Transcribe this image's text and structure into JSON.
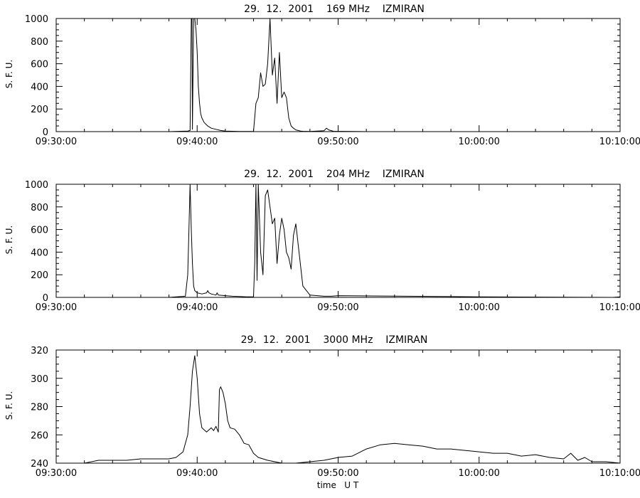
{
  "chart_data": [
    {
      "type": "line",
      "title": "29.  12.  2001    169 MHz    IZMIRAN",
      "ylabel": "S. F. U.",
      "xlabel": "",
      "xlim": [
        "09:30:00",
        "10:10:00"
      ],
      "ylim": [
        0,
        1000
      ],
      "x_ticks": [
        "09:30:00",
        "09:40:00",
        "09:50:00",
        "10:00:00",
        "10:10:00"
      ],
      "y_ticks": [
        0,
        200,
        400,
        600,
        800,
        1000
      ],
      "grid": false,
      "series": [
        {
          "x": [
            "09:30:00",
            "09:38:00",
            "09:39:20",
            "09:39:30",
            "09:39:35",
            "09:39:38",
            "09:39:40",
            "09:39:45",
            "09:39:50",
            "09:39:55",
            "09:40:00",
            "09:40:05",
            "09:40:10",
            "09:40:15",
            "09:40:20",
            "09:40:30",
            "09:40:45",
            "09:41:00",
            "09:41:20",
            "09:41:40",
            "09:42:00",
            "09:42:30",
            "09:43:00",
            "09:43:30",
            "09:44:00",
            "09:44:10",
            "09:44:20",
            "09:44:30",
            "09:44:40",
            "09:44:50",
            "09:45:00",
            "09:45:10",
            "09:45:20",
            "09:45:30",
            "09:45:40",
            "09:45:50",
            "09:46:00",
            "09:46:10",
            "09:46:20",
            "09:46:30",
            "09:46:40",
            "09:46:50",
            "09:47:00",
            "09:47:10",
            "09:47:20",
            "09:47:30",
            "09:48:00",
            "09:49:00",
            "09:49:10",
            "09:49:20",
            "09:49:40",
            "09:52:00",
            "10:00:00",
            "10:10:00"
          ],
          "y": [
            0,
            0,
            5,
            10,
            1000,
            1000,
            20,
            1000,
            1000,
            900,
            700,
            400,
            250,
            160,
            120,
            80,
            50,
            30,
            20,
            10,
            5,
            3,
            2,
            1,
            2,
            250,
            300,
            520,
            400,
            420,
            600,
            1000,
            500,
            650,
            250,
            700,
            300,
            350,
            300,
            120,
            50,
            30,
            15,
            10,
            5,
            3,
            2,
            8,
            30,
            15,
            3,
            0,
            0,
            0
          ]
        }
      ]
    },
    {
      "type": "line",
      "title": "29.  12.  2001    204 MHz    IZMIRAN",
      "ylabel": "S. F. U.",
      "xlabel": "",
      "xlim": [
        "09:30:00",
        "10:10:00"
      ],
      "ylim": [
        0,
        1000
      ],
      "x_ticks": [
        "09:30:00",
        "09:40:00",
        "09:50:00",
        "10:00:00",
        "10:10:00"
      ],
      "y_ticks": [
        0,
        200,
        400,
        600,
        800,
        1000
      ],
      "grid": false,
      "series": [
        {
          "x": [
            "09:30:00",
            "09:38:00",
            "09:39:10",
            "09:39:20",
            "09:39:25",
            "09:39:30",
            "09:39:35",
            "09:39:40",
            "09:39:45",
            "09:39:50",
            "09:40:00",
            "09:40:20",
            "09:40:40",
            "09:40:45",
            "09:40:50",
            "09:41:00",
            "09:41:20",
            "09:41:25",
            "09:41:30",
            "09:42:00",
            "09:42:30",
            "09:43:00",
            "09:43:30",
            "09:44:00",
            "09:44:05",
            "09:44:10",
            "09:44:15",
            "09:44:20",
            "09:44:30",
            "09:44:40",
            "09:44:50",
            "09:45:00",
            "09:45:10",
            "09:45:20",
            "09:45:30",
            "09:45:40",
            "09:45:50",
            "09:46:00",
            "09:46:10",
            "09:46:20",
            "09:46:30",
            "09:46:40",
            "09:46:50",
            "09:47:00",
            "09:47:30",
            "09:48:00",
            "09:49:00",
            "09:49:30",
            "09:50:00",
            "10:00:00",
            "10:09:30",
            "10:10:00"
          ],
          "y": [
            0,
            0,
            10,
            200,
            600,
            1000,
            600,
            300,
            100,
            60,
            40,
            30,
            40,
            60,
            40,
            30,
            20,
            40,
            20,
            15,
            10,
            8,
            5,
            5,
            300,
            1000,
            150,
            1000,
            400,
            200,
            900,
            950,
            800,
            650,
            700,
            300,
            550,
            700,
            600,
            400,
            350,
            250,
            550,
            650,
            100,
            20,
            10,
            10,
            15,
            5,
            0,
            5
          ]
        }
      ]
    },
    {
      "type": "line",
      "title": "29.  12.  2001    3000 MHz    IZMIRAN",
      "ylabel": "S. F. U.",
      "xlabel": "time   U T",
      "xlim": [
        "09:30:00",
        "10:10:00"
      ],
      "ylim": [
        240,
        320
      ],
      "x_ticks": [
        "09:30:00",
        "09:40:00",
        "09:50:00",
        "10:00:00",
        "10:10:00"
      ],
      "y_ticks": [
        240,
        260,
        280,
        300,
        320
      ],
      "grid": false,
      "series": [
        {
          "x": [
            "09:30:00",
            "09:31:00",
            "09:32:00",
            "09:33:00",
            "09:34:00",
            "09:35:00",
            "09:36:00",
            "09:37:00",
            "09:38:00",
            "09:38:30",
            "09:39:00",
            "09:39:20",
            "09:39:30",
            "09:39:40",
            "09:39:50",
            "09:40:00",
            "09:40:10",
            "09:40:20",
            "09:40:40",
            "09:41:00",
            "09:41:10",
            "09:41:20",
            "09:41:30",
            "09:41:35",
            "09:41:40",
            "09:41:50",
            "09:42:00",
            "09:42:10",
            "09:42:20",
            "09:42:40",
            "09:43:00",
            "09:43:20",
            "09:43:40",
            "09:44:00",
            "09:44:20",
            "09:44:40",
            "09:45:00",
            "09:46:00",
            "09:47:00",
            "09:48:00",
            "09:49:00",
            "09:50:00",
            "09:51:00",
            "09:52:00",
            "09:53:00",
            "09:54:00",
            "09:55:00",
            "09:56:00",
            "09:57:00",
            "09:58:00",
            "09:59:00",
            "10:00:00",
            "10:01:00",
            "10:02:00",
            "10:03:00",
            "10:04:00",
            "10:05:00",
            "10:06:00",
            "10:06:30",
            "10:07:00",
            "10:07:30",
            "10:08:00",
            "10:09:00",
            "10:10:00"
          ],
          "y": [
            240,
            239,
            240,
            242,
            242,
            242,
            243,
            243,
            243,
            244,
            248,
            260,
            280,
            305,
            316,
            300,
            275,
            265,
            262,
            265,
            263,
            266,
            262,
            292,
            294,
            290,
            282,
            270,
            265,
            264,
            260,
            254,
            253,
            247,
            244,
            243,
            242,
            240,
            240,
            241,
            242,
            244,
            245,
            250,
            253,
            254,
            253,
            252,
            250,
            250,
            249,
            248,
            247,
            247,
            245,
            246,
            244,
            243,
            247,
            242,
            244,
            241,
            241,
            240
          ]
        }
      ]
    }
  ]
}
